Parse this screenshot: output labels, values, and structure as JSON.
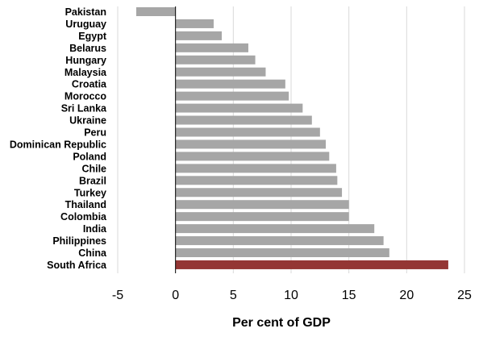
{
  "chart_data": {
    "type": "bar",
    "orientation": "horizontal",
    "categories": [
      "Pakistan",
      "Uruguay",
      "Egypt",
      "Belarus",
      "Hungary",
      "Malaysia",
      "Croatia",
      "Morocco",
      "Sri Lanka",
      "Ukraine",
      "Peru",
      "Dominican Republic",
      "Poland",
      "Chile",
      "Brazil",
      "Turkey",
      "Thailand",
      "Colombia",
      "India",
      "Philippines",
      "China",
      "South Africa"
    ],
    "values": [
      -3.4,
      3.3,
      4.0,
      6.3,
      6.9,
      7.8,
      9.5,
      9.8,
      11.0,
      11.8,
      12.5,
      13.0,
      13.3,
      13.9,
      14.0,
      14.4,
      15.0,
      15.0,
      17.2,
      18.0,
      18.5,
      23.6
    ],
    "xlabel": "Per cent of GDP",
    "ylabel": "",
    "title": "",
    "xlim": [
      -5,
      25
    ],
    "xticks": [
      "-5",
      "0",
      "5",
      "10",
      "15",
      "20",
      "25"
    ],
    "grid": "vertical",
    "legend": "none",
    "colors": {
      "bar": "#a6a6a6",
      "highlight": "#943634",
      "grid": "#d9d9d9",
      "axis": "#000000",
      "text": "#000000"
    },
    "highlight_category": "South Africa"
  }
}
